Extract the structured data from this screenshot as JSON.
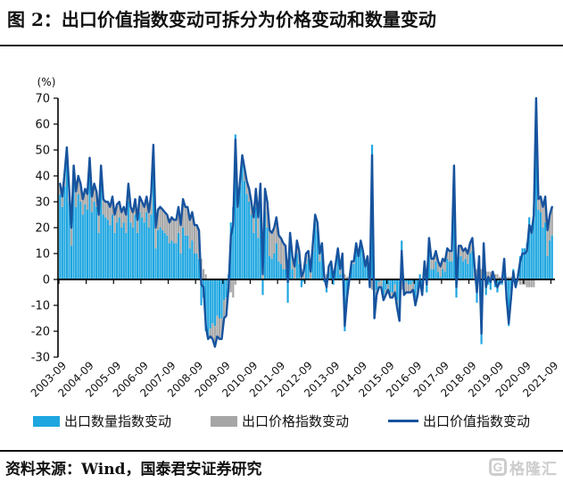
{
  "header": {
    "title": "图 2：出口价值指数变动可拆分为价格变动和数量变动"
  },
  "chart_data": {
    "type": "bar",
    "subtype": "stacked-bars-with-line-overlay",
    "title": "",
    "xlabel": "",
    "ylabel": "(%)",
    "unit_label": "(%)",
    "ylim": [
      -30,
      70
    ],
    "y_ticks": [
      70,
      60,
      50,
      40,
      30,
      20,
      10,
      0,
      -10,
      -20,
      -30
    ],
    "x_start": "2003-09",
    "x_end": "2021-09",
    "frequency": "monthly",
    "x_tick_labels": [
      "2003-09",
      "2004-09",
      "2005-09",
      "2006-09",
      "2007-09",
      "2008-09",
      "2009-09",
      "2010-09",
      "2011-09",
      "2012-09",
      "2013-09",
      "2014-09",
      "2015-09",
      "2016-09",
      "2017-09",
      "2018-09",
      "2019-09",
      "2020-09",
      "2021-09"
    ],
    "legend_position": "bottom",
    "grid": false,
    "series": [
      {
        "name": "出口数量指数变动",
        "type": "bar",
        "color": "#1EA6E0",
        "values": [
          33,
          28,
          36,
          46,
          30,
          13,
          38,
          28,
          33,
          30,
          25,
          29,
          27,
          40,
          26,
          30,
          28,
          18,
          37,
          25,
          24,
          23,
          21,
          25,
          18,
          22,
          24,
          20,
          22,
          18,
          30,
          22,
          20,
          25,
          18,
          26,
          24,
          22,
          26,
          20,
          25,
          44,
          12,
          19,
          20,
          19,
          18,
          17,
          14,
          15,
          14,
          14,
          18,
          10,
          20,
          17,
          17,
          12,
          15,
          10,
          10,
          8,
          -10,
          -7,
          -20,
          -22,
          -19,
          -17,
          -18,
          -14,
          -15,
          -15,
          -8,
          -7,
          2,
          22,
          28,
          56,
          28,
          36,
          44,
          38,
          33,
          30,
          25,
          18,
          28,
          16,
          28,
          -6,
          26,
          20,
          9,
          8,
          10,
          14,
          7,
          6,
          4,
          4,
          -9,
          12,
          4,
          0,
          10,
          6,
          -3,
          -1,
          6,
          8,
          0,
          11,
          22,
          19,
          7,
          12,
          -1,
          -5,
          3,
          5,
          -2,
          4,
          10,
          2,
          8,
          -20,
          -8,
          -1,
          6,
          6,
          13,
          9,
          15,
          11,
          5,
          9,
          -3,
          52,
          -12,
          -4,
          -1,
          0,
          -6,
          -4,
          -2,
          -5,
          -5,
          -2,
          -8,
          -12,
          15,
          -2,
          -1,
          -2,
          -2,
          -1,
          -7,
          -4,
          2,
          -4,
          6,
          -5,
          12,
          4,
          4,
          7,
          3,
          1,
          4,
          3,
          8,
          7,
          7,
          40,
          -7,
          9,
          9,
          7,
          8,
          6,
          10,
          11,
          0,
          -9,
          4,
          -25,
          10,
          -6,
          -2,
          -4,
          1,
          -3,
          -5,
          -2,
          -2,
          7,
          -8,
          -18,
          -8,
          4,
          -2,
          2,
          9,
          12,
          12,
          14,
          24,
          21,
          28,
          60,
          27,
          26,
          20,
          22,
          9,
          15,
          17
        ]
      },
      {
        "name": "出口价格指数变动",
        "type": "bar",
        "color": "#A6A6A6",
        "values": [
          4,
          4,
          5,
          5,
          5,
          7,
          6,
          6,
          7,
          7,
          6,
          6,
          6,
          7,
          6,
          7,
          6,
          7,
          7,
          6,
          6,
          7,
          7,
          7,
          7,
          7,
          6,
          6,
          6,
          7,
          7,
          6,
          6,
          6,
          5,
          6,
          6,
          6,
          6,
          6,
          8,
          8,
          8,
          8,
          8,
          8,
          8,
          8,
          8,
          9,
          9,
          9,
          10,
          11,
          11,
          11,
          11,
          11,
          11,
          11,
          11,
          11,
          8,
          4,
          2,
          -1,
          -3,
          -6,
          -8,
          -8,
          -8,
          -8,
          -7,
          -7,
          -5,
          -5,
          -7,
          -2,
          0,
          2,
          4,
          5,
          5,
          5,
          5,
          6,
          7,
          8,
          9,
          8,
          9,
          10,
          10,
          10,
          10,
          10,
          10,
          10,
          10,
          9,
          8,
          6,
          5,
          5,
          5,
          5,
          4,
          4,
          4,
          3,
          3,
          3,
          3,
          3,
          3,
          2,
          2,
          2,
          2,
          2,
          2,
          2,
          2,
          2,
          2,
          2,
          1,
          1,
          1,
          1,
          1,
          0,
          0,
          0,
          0,
          0,
          0,
          -4,
          -3,
          -2,
          -2,
          -3,
          -2,
          -2,
          -2,
          -2,
          -2,
          -3,
          -3,
          -4,
          -4,
          -4,
          -4,
          -3,
          -3,
          -3,
          -3,
          -2,
          -2,
          -2,
          1,
          3,
          4,
          4,
          4,
          4,
          4,
          4,
          4,
          4,
          4,
          4,
          4,
          4,
          4,
          4,
          4,
          4,
          4,
          4,
          4,
          5,
          5,
          4,
          5,
          4,
          4,
          3,
          3,
          3,
          2,
          2,
          2,
          1,
          1,
          1,
          1,
          1,
          1,
          -1,
          -1,
          -1,
          -2,
          -2,
          -2,
          -3,
          -3,
          -3,
          -3,
          10,
          4,
          6,
          8,
          10,
          10,
          10,
          11
        ]
      },
      {
        "name": "出口价值指数变动",
        "type": "line",
        "color": "#17539E",
        "derived": "sum of quantity and price series; line clipped at +70"
      }
    ]
  },
  "footer": {
    "source": "资料来源：Wind，国泰君安证券研究",
    "watermark": "格隆汇",
    "watermark_icon": "G"
  }
}
